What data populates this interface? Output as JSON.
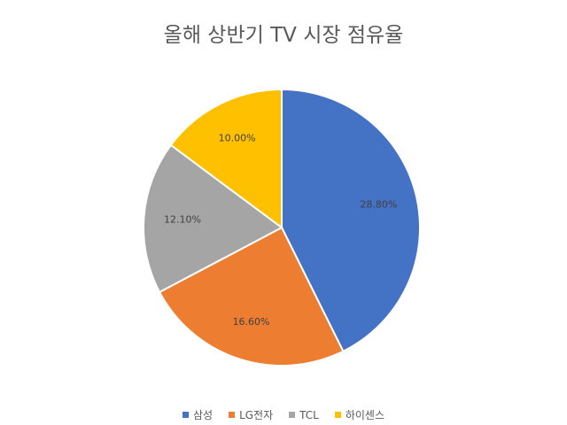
{
  "chart_data": {
    "type": "pie",
    "title": "올해 상반기 TV 시장 점유율",
    "categories": [
      "삼성",
      "LG전자",
      "TCL",
      "하이센스"
    ],
    "values": [
      28.8,
      16.6,
      12.1,
      10.0
    ],
    "labels": [
      "28.80%",
      "16.60%",
      "12.10%",
      "10.00%"
    ],
    "colors": [
      "#4472C4",
      "#ED7D31",
      "#A5A5A5",
      "#FFC000"
    ],
    "legend_position": "bottom"
  }
}
